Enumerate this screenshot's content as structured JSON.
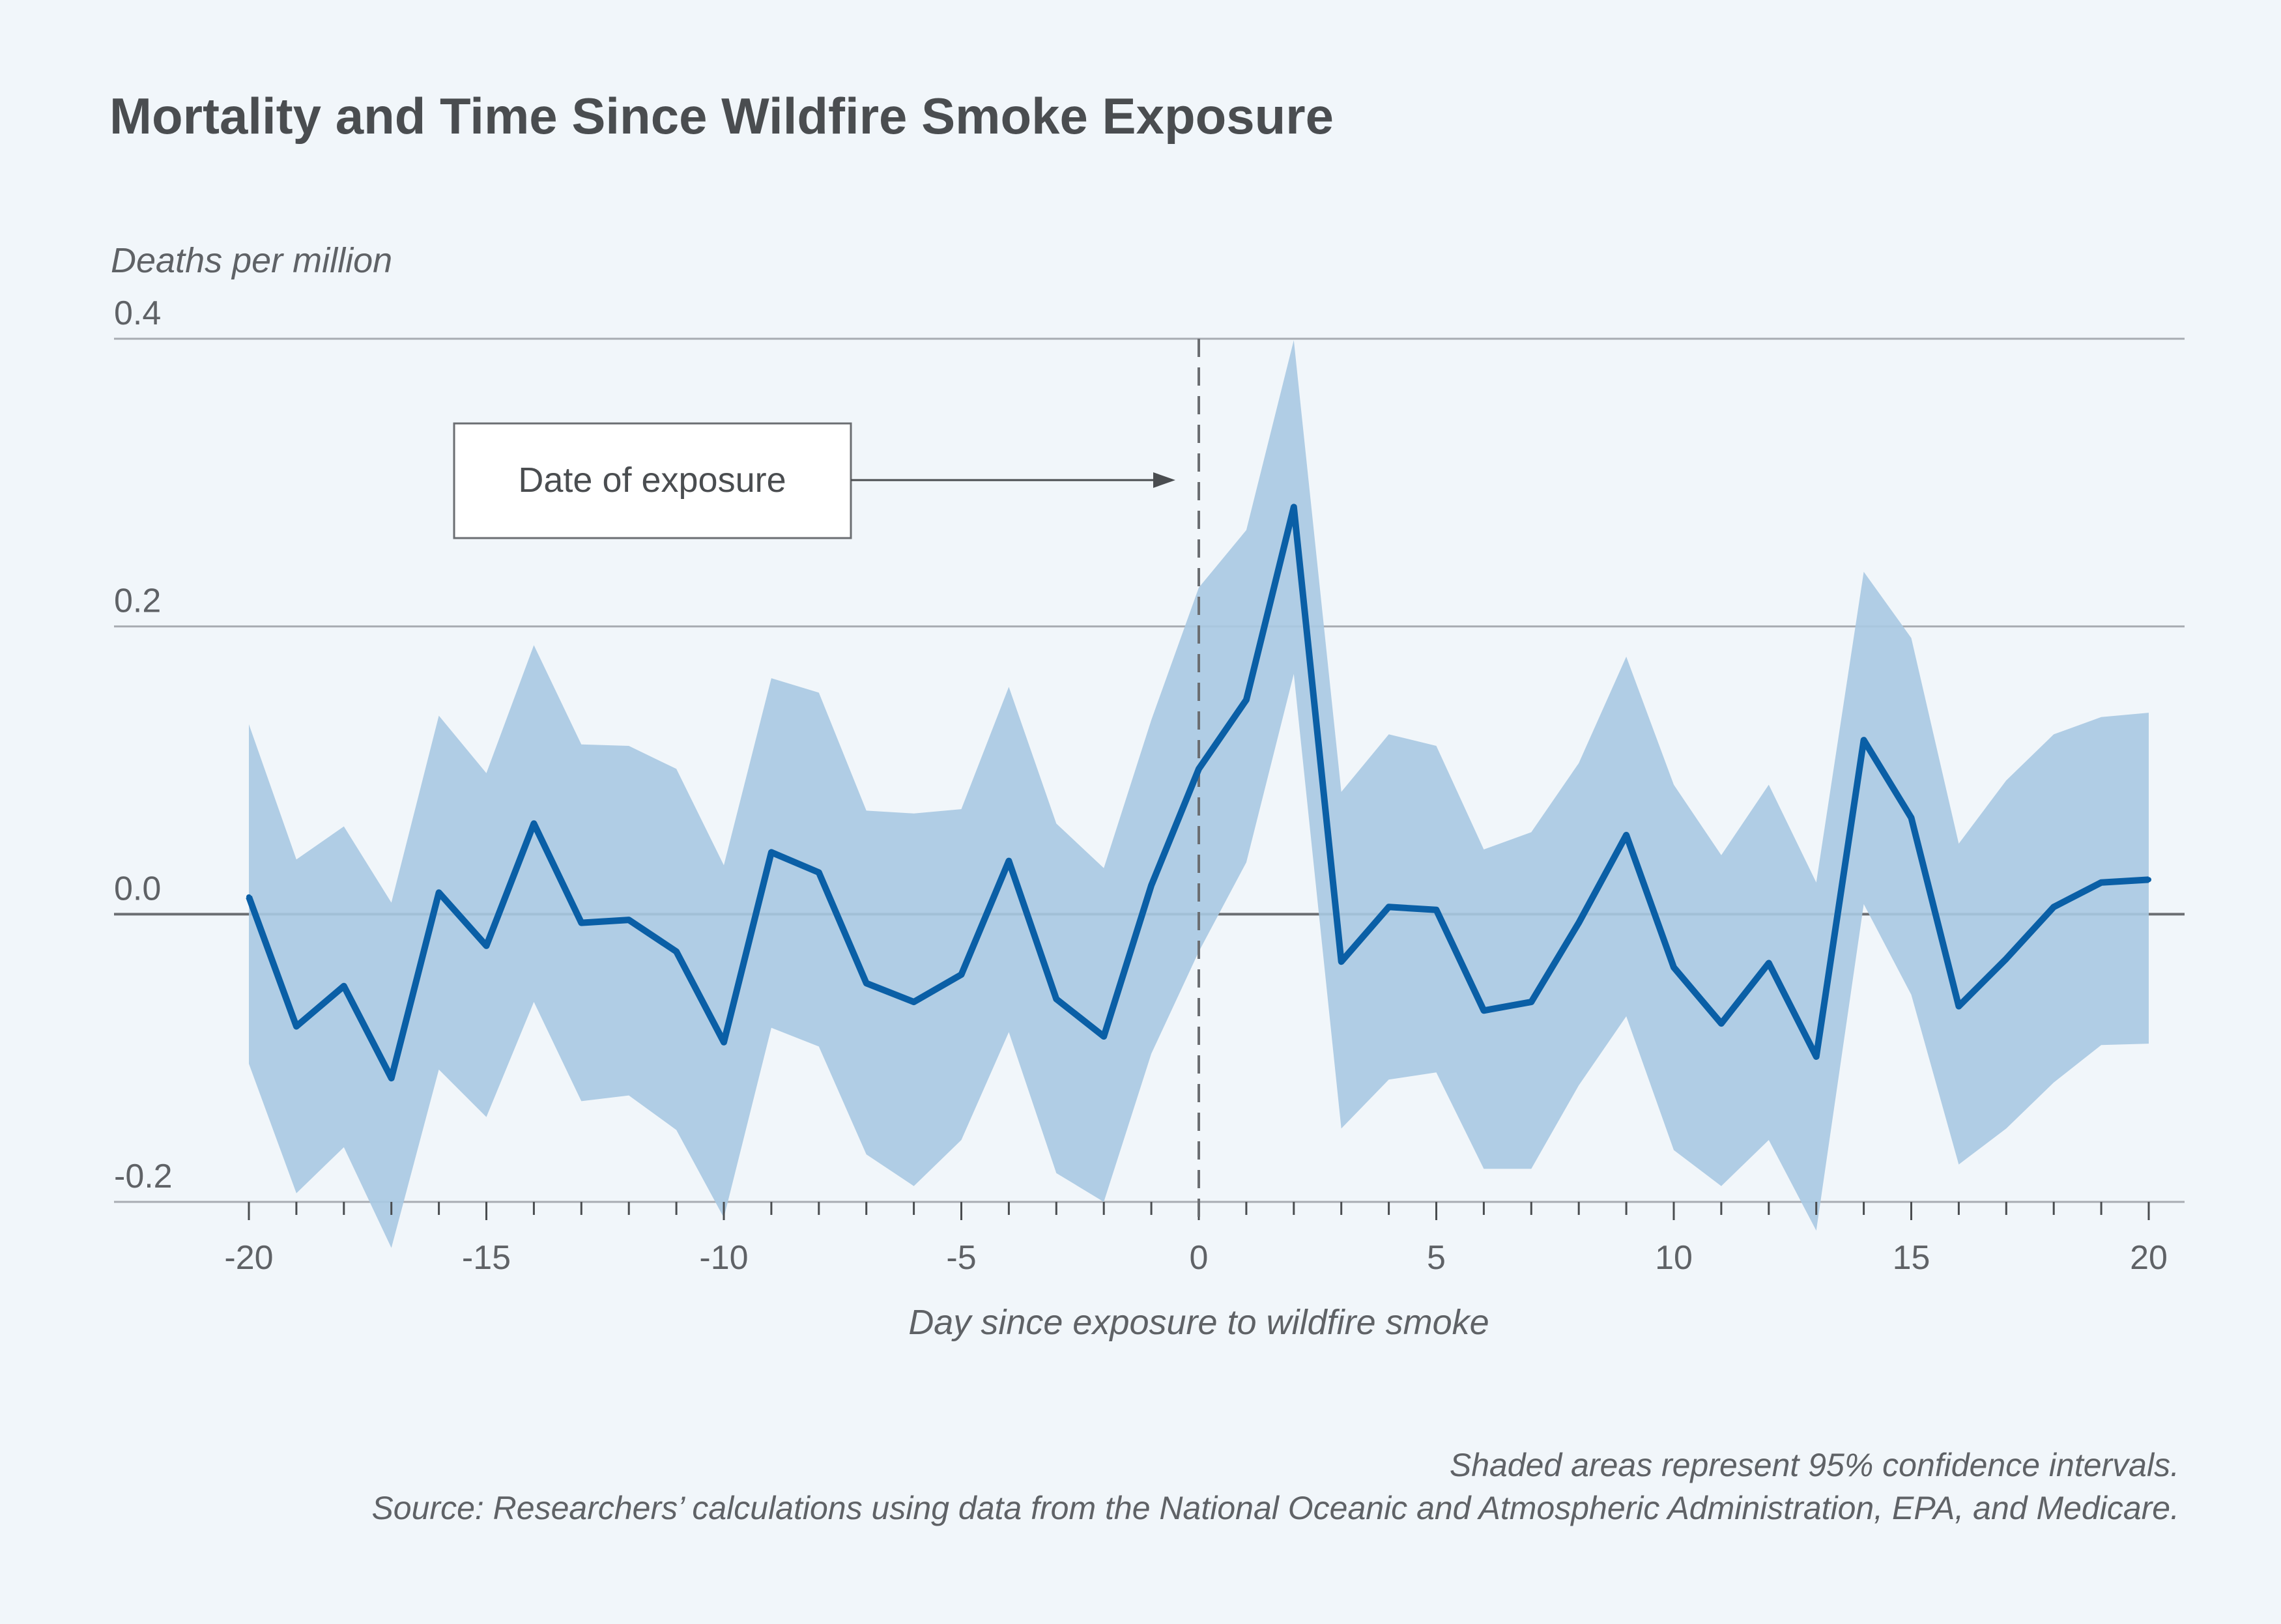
{
  "chart_data": {
    "type": "line",
    "title": "Mortality and Time Since Wildfire Smoke Exposure",
    "ylabel": "Deaths per million",
    "xlabel": "Day since exposure to wildfire smoke",
    "xlim": [
      -20,
      20
    ],
    "ylim": [
      -0.2,
      0.4
    ],
    "x_ticks": [
      "-20",
      "-15",
      "-10",
      "-5",
      "0",
      "5",
      "10",
      "15",
      "20"
    ],
    "y_ticks": [
      "0.4",
      "0.2",
      "0.0",
      "-0.2"
    ],
    "grid": "horizontal",
    "colors": {
      "line": "#0a5fa6",
      "band": "#a9c9e2",
      "background": "#f1f6fa"
    },
    "annotation": {
      "text": "Date of exposure",
      "x": 0
    },
    "x": [
      -20,
      -19,
      -18,
      -17,
      -16,
      -15,
      -14,
      -13,
      -12,
      -11,
      -10,
      -9,
      -8,
      -7,
      -6,
      -5,
      -4,
      -3,
      -2,
      -1,
      0,
      1,
      2,
      3,
      4,
      5,
      6,
      7,
      8,
      9,
      10,
      11,
      12,
      13,
      14,
      15,
      16,
      17,
      18,
      19,
      20
    ],
    "series": [
      {
        "values": [
          0.012,
          -0.078,
          -0.05,
          -0.114,
          0.015,
          -0.022,
          0.063,
          -0.006,
          -0.004,
          -0.026,
          -0.089,
          0.043,
          0.029,
          -0.048,
          -0.061,
          -0.042,
          0.037,
          -0.059,
          -0.085,
          0.02,
          0.101,
          0.149,
          0.283,
          -0.033,
          0.005,
          0.003,
          -0.067,
          -0.061,
          -0.006,
          0.055,
          -0.037,
          -0.076,
          -0.034,
          -0.099,
          0.121,
          0.067,
          -0.064,
          -0.031,
          0.005,
          0.022,
          0.024
        ],
        "ci_upper": [
          0.132,
          0.038,
          0.061,
          0.008,
          0.138,
          0.098,
          0.187,
          0.118,
          0.117,
          0.101,
          0.034,
          0.164,
          0.154,
          0.072,
          0.07,
          0.073,
          0.158,
          0.063,
          0.032,
          0.135,
          0.227,
          0.267,
          0.399,
          0.085,
          0.125,
          0.117,
          0.045,
          0.057,
          0.105,
          0.179,
          0.09,
          0.041,
          0.09,
          0.022,
          0.238,
          0.192,
          0.049,
          0.093,
          0.125,
          0.137,
          0.14
        ],
        "ci_lower": [
          -0.104,
          -0.194,
          -0.162,
          -0.232,
          -0.108,
          -0.141,
          -0.061,
          -0.13,
          -0.126,
          -0.15,
          -0.211,
          -0.079,
          -0.092,
          -0.167,
          -0.189,
          -0.157,
          -0.082,
          -0.18,
          -0.2,
          -0.097,
          -0.026,
          0.036,
          0.167,
          -0.149,
          -0.115,
          -0.11,
          -0.177,
          -0.177,
          -0.119,
          -0.071,
          -0.164,
          -0.189,
          -0.157,
          -0.22,
          0.007,
          -0.056,
          -0.174,
          -0.149,
          -0.117,
          -0.091,
          -0.09
        ]
      }
    ],
    "notes": [
      "Shaded areas represent 95% confidence intervals.",
      "Source: Researchers’ calculations using data from the National Oceanic and Atmospheric Administration, EPA, and Medicare."
    ]
  }
}
